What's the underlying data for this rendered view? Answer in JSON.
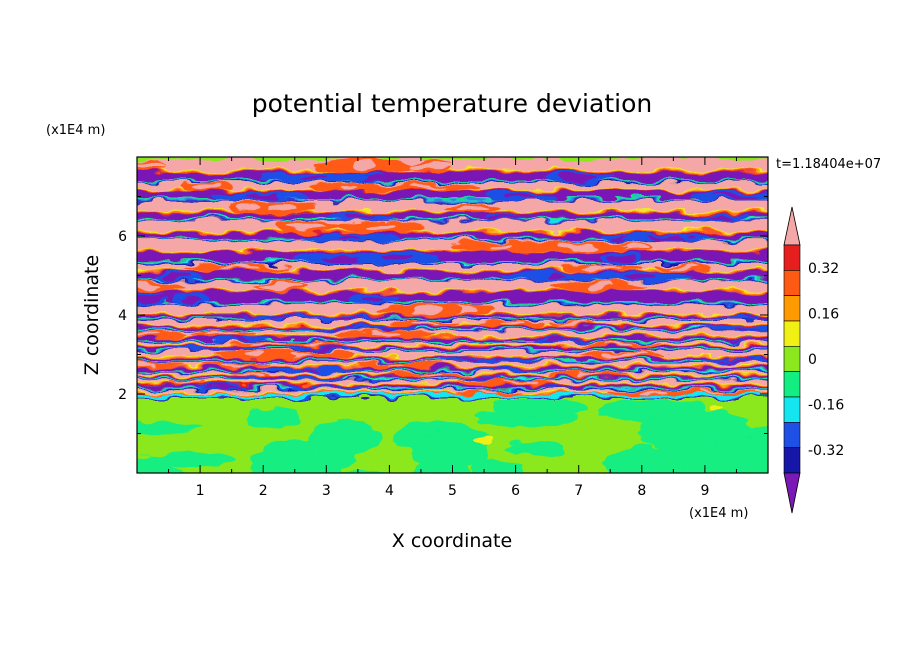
{
  "chart_data": {
    "type": "heatmap",
    "title": "potential temperature deviation",
    "xlabel": "X coordinate",
    "ylabel": "Z coordinate",
    "x_unit_label": "(x1E4 m)",
    "y_unit_label": "(x1E4 m)",
    "time_label": "t=1.18404e+07",
    "xlim": [
      0,
      10
    ],
    "ylim": [
      0,
      8
    ],
    "xticks": [
      1,
      2,
      3,
      4,
      5,
      6,
      7,
      8,
      9
    ],
    "yticks": [
      2,
      4,
      6
    ],
    "colorbar": {
      "levels": [
        -0.4,
        -0.32,
        -0.24,
        -0.16,
        -0.08,
        0,
        0.08,
        0.16,
        0.24,
        0.32,
        0.4
      ],
      "colors": [
        "#7a19b5",
        "#1616a8",
        "#1e50e6",
        "#14e6f0",
        "#12ee82",
        "#8ae81c",
        "#f0f014",
        "#ff9b00",
        "#ff5a14",
        "#e61e1e",
        "#f5a7a7"
      ],
      "tick_labels": [
        "0.32",
        "0.16",
        "0",
        "-0.16",
        "-0.32"
      ],
      "tick_values": [
        0.32,
        0.16,
        0,
        -0.16,
        -0.32
      ],
      "extend": "both"
    },
    "field_description_regions": [
      {
        "z_range": [
          0,
          2
        ],
        "dominant": [
          -0.04,
          0.04
        ]
      },
      {
        "z_range": [
          2,
          4
        ],
        "dominant": "mixed"
      },
      {
        "z_range": [
          4,
          8
        ],
        "dominant": "layered high/low bands"
      }
    ]
  }
}
